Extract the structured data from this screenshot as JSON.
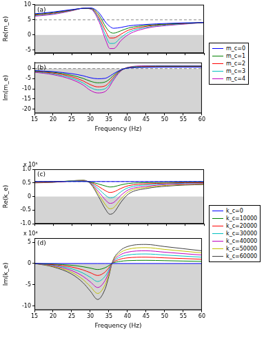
{
  "chart_data": [
    {
      "type": "line",
      "title": "(a)",
      "y_label": "Re(m_e)",
      "tick_labels": "y",
      "grid": false,
      "legend": "right",
      "x": [
        15,
        20,
        25,
        28,
        30,
        32,
        34,
        35,
        36,
        38,
        40,
        45,
        50,
        55,
        60
      ],
      "xlim": [
        15,
        60
      ],
      "xticks": [
        15,
        20,
        25,
        30,
        35,
        40,
        45,
        50,
        55,
        60
      ],
      "ylim": [
        -6,
        10
      ],
      "yticks": [
        -5,
        0,
        5,
        10
      ],
      "annotations": [
        {
          "type": "region",
          "y_from": -6,
          "y_to": 0
        },
        {
          "type": "hline",
          "y": 5,
          "line_style": "dashed"
        }
      ],
      "series": [
        {
          "name": "m_c=0",
          "color": "#0000ff",
          "values": [
            7,
            7.6,
            8.4,
            8.8,
            8.9,
            7.5,
            4,
            2.8,
            2.2,
            2.5,
            3,
            3.5,
            3.8,
            4,
            4.1
          ]
        },
        {
          "name": "m_c=1",
          "color": "#008000",
          "values": [
            6.8,
            7.4,
            8.3,
            8.8,
            8.8,
            6.8,
            2.5,
            1,
            0.6,
            1.4,
            2.3,
            3.2,
            3.6,
            3.9,
            4.1
          ]
        },
        {
          "name": "m_c=2",
          "color": "#ff0000",
          "values": [
            6.6,
            7.2,
            8.2,
            8.8,
            8.7,
            6,
            1,
            -1,
            -1,
            0.3,
            1.6,
            2.9,
            3.5,
            3.8,
            4.1
          ]
        },
        {
          "name": "m_c=3",
          "color": "#00bfbf",
          "values": [
            6.4,
            7,
            8.1,
            8.8,
            8.6,
            5.4,
            -0.5,
            -2.8,
            -2.8,
            -0.8,
            0.9,
            2.6,
            3.3,
            3.7,
            4.1
          ]
        },
        {
          "name": "m_c=4",
          "color": "#bf00bf",
          "values": [
            6.2,
            6.8,
            8,
            8.8,
            8.5,
            4.8,
            -2,
            -4.5,
            -4.5,
            -1.8,
            0.2,
            2.3,
            3.1,
            3.6,
            4.1
          ]
        }
      ]
    },
    {
      "type": "line",
      "title": "(b)",
      "x_label": "Frequency (Hz)",
      "y_label": "Im(m_e)",
      "grid": false,
      "x": [
        15,
        20,
        25,
        28,
        30,
        32,
        34,
        35,
        36,
        38,
        40,
        45,
        50,
        55,
        60
      ],
      "xlim": [
        15,
        60
      ],
      "xticks": [
        15,
        20,
        25,
        30,
        35,
        40,
        45,
        50,
        55,
        60
      ],
      "ylim": [
        -22,
        3
      ],
      "yticks": [
        -20,
        -15,
        -10,
        -5,
        0
      ],
      "annotations": [
        {
          "type": "region",
          "y_from": -22,
          "y_to": 0
        },
        {
          "type": "hline",
          "y": 0,
          "line_style": "dashed"
        }
      ],
      "series": [
        {
          "name": "m_c=0",
          "color": "#0000ff",
          "values": [
            -1,
            -1.5,
            -2.5,
            -3.5,
            -4.5,
            -5,
            -4.8,
            -4,
            -2.8,
            -0.8,
            0.2,
            0.6,
            0.7,
            0.7,
            0.7
          ]
        },
        {
          "name": "m_c=1",
          "color": "#008000",
          "values": [
            -1.2,
            -1.8,
            -3.3,
            -4.8,
            -6.2,
            -7,
            -6.6,
            -5.5,
            -3.8,
            -1,
            0.3,
            0.8,
            0.9,
            0.9,
            0.9
          ]
        },
        {
          "name": "m_c=2",
          "color": "#ff0000",
          "values": [
            -1.4,
            -2.2,
            -4,
            -6,
            -7.9,
            -9,
            -8.5,
            -7,
            -4.8,
            -1.2,
            0.4,
            1,
            1.1,
            1.1,
            1.1
          ]
        },
        {
          "name": "m_c=3",
          "color": "#00bfbf",
          "values": [
            -1.6,
            -2.6,
            -4.7,
            -7,
            -9.3,
            -10.5,
            -9.9,
            -8.2,
            -5.6,
            -1.4,
            0.5,
            1.2,
            1.3,
            1.3,
            1.3
          ]
        },
        {
          "name": "m_c=4",
          "color": "#bf00bf",
          "values": [
            -1.8,
            -3,
            -5.4,
            -8,
            -10.7,
            -12,
            -11.3,
            -9.4,
            -6.4,
            -1.6,
            0.6,
            1.4,
            1.5,
            1.5,
            1.5
          ]
        }
      ]
    },
    {
      "type": "line",
      "title": "(c)",
      "y_label": "Re(k_e)",
      "tick_labels": "y",
      "grid": false,
      "legend": "right",
      "x": [
        15,
        20,
        25,
        28,
        30,
        32,
        34,
        35,
        36,
        38,
        40,
        45,
        50,
        55,
        60
      ],
      "xlim": [
        15,
        60
      ],
      "xticks": [
        15,
        20,
        25,
        30,
        35,
        40,
        45,
        50,
        55,
        60
      ],
      "ylim": [
        -1,
        1
      ],
      "yticks": [
        -1,
        -0.5,
        0,
        0.5,
        1
      ],
      "annotations": [
        {
          "type": "region",
          "y_from": -1,
          "y_to": 0
        },
        {
          "type": "hline",
          "y": 0.55,
          "line_style": "dashed"
        },
        {
          "type": "text",
          "text": "x 10⁵"
        }
      ],
      "series": [
        {
          "name": "k_c=0",
          "color": "#0000ff",
          "values": [
            0.55,
            0.55,
            0.55,
            0.55,
            0.55,
            0.55,
            0.55,
            0.55,
            0.55,
            0.55,
            0.55,
            0.55,
            0.55,
            0.55,
            0.55
          ]
        },
        {
          "name": "k_c=10000",
          "color": "#008000",
          "values": [
            0.54,
            0.55,
            0.56,
            0.56,
            0.53,
            0.46,
            0.38,
            0.35,
            0.36,
            0.43,
            0.48,
            0.51,
            0.52,
            0.53,
            0.53
          ]
        },
        {
          "name": "k_c=20000",
          "color": "#ff0000",
          "values": [
            0.53,
            0.54,
            0.56,
            0.57,
            0.52,
            0.37,
            0.2,
            0.15,
            0.17,
            0.3,
            0.4,
            0.47,
            0.49,
            0.51,
            0.51
          ]
        },
        {
          "name": "k_c=30000",
          "color": "#00bfbf",
          "values": [
            0.53,
            0.54,
            0.57,
            0.58,
            0.5,
            0.28,
            0.03,
            -0.05,
            -0.03,
            0.18,
            0.33,
            0.43,
            0.47,
            0.49,
            0.5
          ]
        },
        {
          "name": "k_c=40000",
          "color": "#bf00bf",
          "values": [
            0.52,
            0.53,
            0.57,
            0.58,
            0.48,
            0.18,
            -0.15,
            -0.25,
            -0.22,
            0.05,
            0.25,
            0.38,
            0.44,
            0.46,
            0.48
          ]
        },
        {
          "name": "k_c=50000",
          "color": "#bfbf00",
          "values": [
            0.51,
            0.53,
            0.58,
            0.59,
            0.47,
            0.09,
            -0.33,
            -0.45,
            -0.41,
            -0.08,
            0.18,
            0.34,
            0.41,
            0.44,
            0.46
          ]
        },
        {
          "name": "k_c=60000",
          "color": "#404040",
          "values": [
            0.5,
            0.52,
            0.58,
            0.6,
            0.45,
            0,
            -0.5,
            -0.65,
            -0.6,
            -0.2,
            0.1,
            0.3,
            0.38,
            0.42,
            0.44
          ]
        }
      ]
    },
    {
      "type": "line",
      "title": "(d)",
      "x_label": "Frequency (Hz)",
      "y_label": "Im(k_e)",
      "grid": false,
      "x": [
        15,
        20,
        25,
        28,
        30,
        32,
        34,
        35,
        36,
        38,
        40,
        45,
        50,
        55,
        60
      ],
      "xlim": [
        15,
        60
      ],
      "xticks": [
        15,
        20,
        25,
        30,
        35,
        40,
        45,
        50,
        55,
        60
      ],
      "ylim": [
        -11,
        6
      ],
      "yticks": [
        -10,
        -5,
        0,
        5
      ],
      "annotations": [
        {
          "type": "region",
          "y_from": -11,
          "y_to": 0
        },
        {
          "type": "text",
          "text": "x 10⁴"
        }
      ],
      "series": [
        {
          "name": "k_c=0",
          "color": "#0000ff",
          "values": [
            0,
            0,
            0,
            0,
            0,
            0,
            0,
            0,
            0,
            0,
            0,
            0,
            0,
            0,
            0
          ]
        },
        {
          "name": "k_c=10000",
          "color": "#008000",
          "values": [
            0,
            -0.13,
            -0.42,
            -0.75,
            -1.08,
            -1.42,
            -1,
            -0.5,
            0.08,
            0.5,
            0.67,
            0.75,
            0.67,
            0.58,
            0.5
          ]
        },
        {
          "name": "k_c=20000",
          "color": "#ff0000",
          "values": [
            0,
            -0.27,
            -0.83,
            -1.5,
            -2.17,
            -2.83,
            -2,
            -1,
            0.17,
            1,
            1.33,
            1.5,
            1.33,
            1.17,
            1
          ]
        },
        {
          "name": "k_c=30000",
          "color": "#00bfbf",
          "values": [
            0,
            -0.4,
            -1.25,
            -2.25,
            -3.25,
            -4.25,
            -3,
            -1.5,
            0.25,
            1.5,
            2,
            2.25,
            2,
            1.75,
            1.5
          ]
        },
        {
          "name": "k_c=40000",
          "color": "#bf00bf",
          "values": [
            0,
            -0.53,
            -1.67,
            -3,
            -4.33,
            -5.67,
            -4,
            -2,
            0.33,
            2,
            2.67,
            3,
            2.67,
            2.33,
            2
          ]
        },
        {
          "name": "k_c=50000",
          "color": "#bfbf00",
          "values": [
            0,
            -0.67,
            -2.08,
            -3.75,
            -5.42,
            -7.08,
            -5,
            -2.5,
            0.42,
            2.5,
            3.33,
            3.75,
            3.33,
            2.92,
            2.5
          ]
        },
        {
          "name": "k_c=60000",
          "color": "#404040",
          "values": [
            0,
            -0.8,
            -2.5,
            -4.5,
            -6.5,
            -8.5,
            -6,
            -3,
            0.5,
            3,
            4,
            4.5,
            4,
            3.5,
            3
          ]
        }
      ]
    }
  ]
}
